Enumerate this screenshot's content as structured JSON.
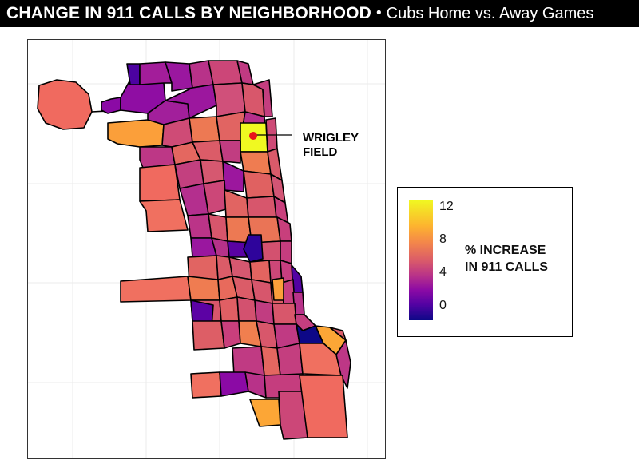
{
  "title": {
    "bold": "CHANGE IN 911 CALLS BY NEIGHBORHOOD",
    "separator": "•",
    "subtitle": "Cubs Home vs. Away Games"
  },
  "annotation": {
    "line1": "WRIGLEY",
    "line2": "FIELD"
  },
  "legend": {
    "title_line1": "% INCREASE",
    "title_line2": "IN 911 CALLS",
    "ticks": [
      "12",
      "8",
      "4",
      "0"
    ],
    "scale": "plasma",
    "range": [
      -1,
      13
    ]
  },
  "colors": {
    "highlight": "#f0f921",
    "marker": "#e8141b",
    "border": "#000000"
  }
}
